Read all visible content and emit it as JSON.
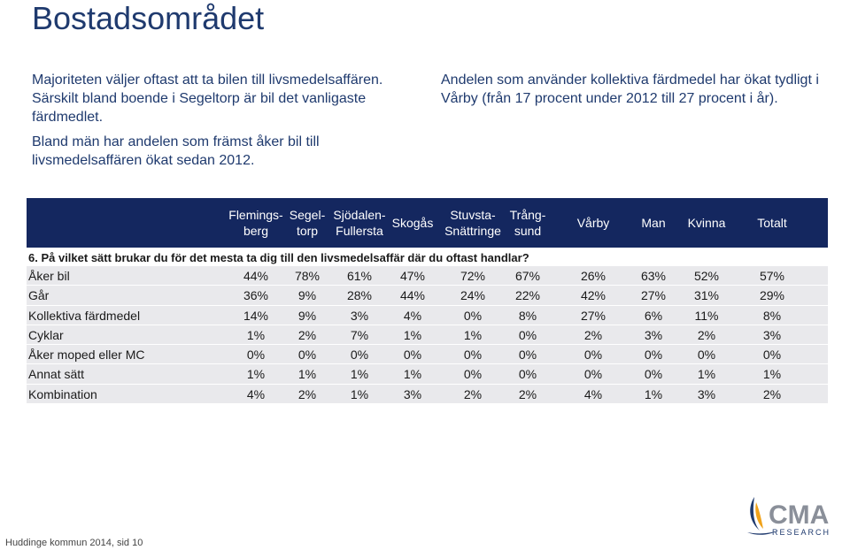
{
  "title": "Bostadsområdet",
  "left_text": {
    "p1": "Majoriteten väljer oftast att ta bilen till livsmedelsaffären. Särskilt bland boende i Segeltorp är bil det vanligaste färdmedlet.",
    "p2": "Bland män har andelen som främst åker bil till livsmedelsaffären ökat sedan 2012."
  },
  "right_text": {
    "p1": "Andelen som använder kollektiva färdmedel har ökat tydligt i Vårby (från 17 procent under 2012 till 27 procent i år)."
  },
  "table": {
    "columns": [
      {
        "line1": "Flemings-",
        "line2": "berg"
      },
      {
        "line1": "Segel-",
        "line2": "torp"
      },
      {
        "line1": "Sjödalen-",
        "line2": "Fullersta"
      },
      {
        "line1": "Skogås",
        "line2": ""
      },
      {
        "line1": "Stuvsta-",
        "line2": "Snättringe"
      },
      {
        "line1": "Trång-",
        "line2": "sund"
      },
      {
        "line1": "Vårby",
        "line2": ""
      },
      {
        "line1": "Man",
        "line2": ""
      },
      {
        "line1": "Kvinna",
        "line2": ""
      },
      {
        "line1": "Totalt",
        "line2": ""
      }
    ],
    "question": "6. På vilket sätt brukar du för det mesta ta dig till den livsmedelsaffär där du oftast handlar?",
    "rows": [
      {
        "label": "Åker bil",
        "values": [
          "44%",
          "78%",
          "61%",
          "47%",
          "72%",
          "67%",
          "26%",
          "63%",
          "52%",
          "57%"
        ]
      },
      {
        "label": "Går",
        "values": [
          "36%",
          "9%",
          "28%",
          "44%",
          "24%",
          "22%",
          "42%",
          "27%",
          "31%",
          "29%"
        ]
      },
      {
        "label": "Kollektiva färdmedel",
        "values": [
          "14%",
          "9%",
          "3%",
          "4%",
          "0%",
          "8%",
          "27%",
          "6%",
          "11%",
          "8%"
        ]
      },
      {
        "label": "Cyklar",
        "values": [
          "1%",
          "2%",
          "7%",
          "1%",
          "1%",
          "0%",
          "2%",
          "3%",
          "2%",
          "3%"
        ]
      },
      {
        "label": "Åker moped eller MC",
        "values": [
          "0%",
          "0%",
          "0%",
          "0%",
          "0%",
          "0%",
          "0%",
          "0%",
          "0%",
          "0%"
        ]
      },
      {
        "label": "Annat sätt",
        "values": [
          "1%",
          "1%",
          "1%",
          "1%",
          "0%",
          "0%",
          "0%",
          "0%",
          "1%",
          "1%"
        ]
      },
      {
        "label": "Kombination",
        "values": [
          "4%",
          "2%",
          "1%",
          "3%",
          "2%",
          "2%",
          "4%",
          "1%",
          "3%",
          "2%"
        ]
      }
    ]
  },
  "footer": "Huddinge kommun 2014, sid 10",
  "logo": {
    "name": "CMA",
    "sub": "RESEARCH"
  },
  "colors": {
    "header_band": "#14275f",
    "title": "#1f3a6e",
    "row_bg": "#e9e9ec"
  }
}
